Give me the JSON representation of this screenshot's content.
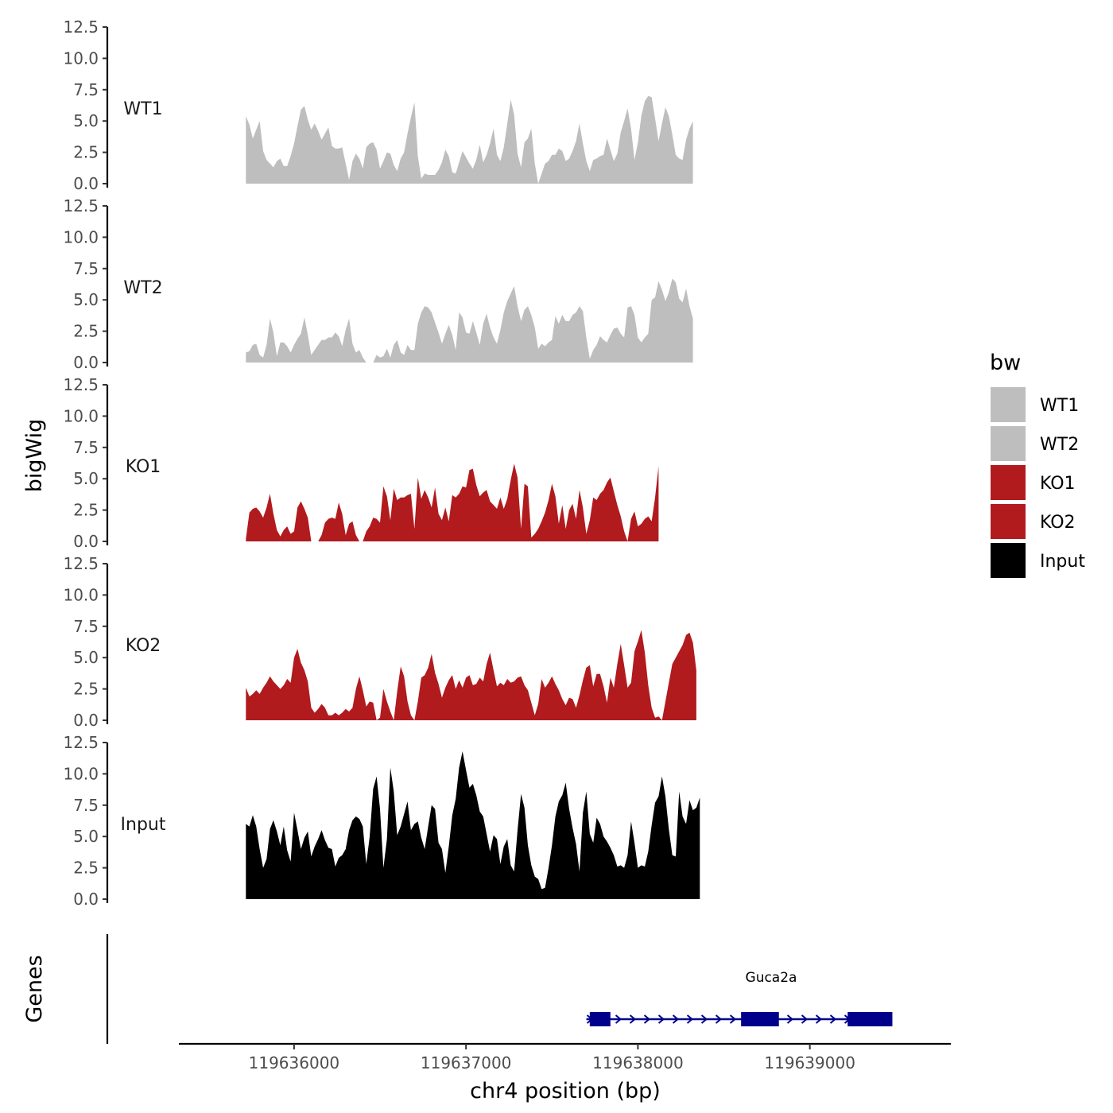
{
  "chart_data": {
    "type": "area",
    "ylabel": "bigWig",
    "xlabel": "chr4 position (bp)",
    "xlim": [
      119635330,
      119639820
    ],
    "x_ticks": [
      {
        "value": 119636000,
        "label": "119636000"
      },
      {
        "value": 119637000,
        "label": "119637000"
      },
      {
        "value": 119638000,
        "label": "119638000"
      },
      {
        "value": 119639000,
        "label": "119639000"
      }
    ],
    "ylim": [
      0,
      12.5
    ],
    "y_ticks": [
      "0.0",
      "2.5",
      "5.0",
      "7.5",
      "10.0",
      "12.5"
    ],
    "y_tick_values": [
      0,
      2.5,
      5,
      7.5,
      10,
      12.5
    ],
    "x_start": 119635720,
    "x_step": 20,
    "series": [
      {
        "name": "WT1",
        "color": "#bebebe",
        "values": [
          5.4,
          4.7,
          3.6,
          4.3,
          5.0,
          2.6,
          1.9,
          1.6,
          1.3,
          1.8,
          2.0,
          1.4,
          1.4,
          2.2,
          3.2,
          4.6,
          5.9,
          6.2,
          5.1,
          4.3,
          4.8,
          4.2,
          3.5,
          4.0,
          4.5,
          3.0,
          2.8,
          2.8,
          2.9,
          1.6,
          0.3,
          1.8,
          2.4,
          2.0,
          1.2,
          2.9,
          3.2,
          3.3,
          2.7,
          1.2,
          1.8,
          2.5,
          2.4,
          1.5,
          1.0,
          2.0,
          2.5,
          4.0,
          5.3,
          6.5,
          2.2,
          0.4,
          0.8,
          0.7,
          0.7,
          0.7,
          1.1,
          1.7,
          2.7,
          2.2,
          0.9,
          0.8,
          1.7,
          2.6,
          2.1,
          1.6,
          1.2,
          1.9,
          3.1,
          1.7,
          2.3,
          3.2,
          4.4,
          2.3,
          1.8,
          2.9,
          4.8,
          6.7,
          5.5,
          2.4,
          1.3,
          3.3,
          3.6,
          4.4,
          1.6,
          0.0,
          0.8,
          1.6,
          1.8,
          2.3,
          2.3,
          2.8,
          2.6,
          1.8,
          2.0,
          2.6,
          3.4,
          4.8,
          3.2,
          1.8,
          1.0,
          1.9,
          2.0,
          2.2,
          2.3,
          3.6,
          2.7,
          1.8,
          2.4,
          4.1,
          5.0,
          6.0,
          4.4,
          1.9,
          3.3,
          5.4,
          6.6,
          7.0,
          6.9,
          5.2,
          3.4,
          4.8,
          6.1,
          5.4,
          3.9,
          2.3,
          2.0,
          1.9,
          3.5,
          4.4,
          5.0
        ]
      },
      {
        "name": "WT2",
        "color": "#bebebe",
        "values": [
          0.8,
          0.9,
          1.4,
          1.5,
          0.6,
          0.4,
          1.4,
          3.5,
          2.4,
          0.5,
          1.6,
          1.6,
          1.3,
          0.8,
          1.4,
          1.9,
          2.3,
          3.6,
          2.2,
          0.6,
          1.0,
          1.4,
          1.8,
          1.8,
          2.0,
          2.0,
          2.4,
          2.1,
          1.3,
          2.6,
          3.5,
          1.5,
          0.8,
          1.0,
          0.4,
          0.0,
          0.0,
          0.0,
          0.6,
          0.4,
          0.5,
          1.1,
          0.4,
          1.4,
          1.8,
          0.8,
          0.6,
          1.4,
          1.0,
          1.0,
          3.1,
          4.0,
          4.5,
          4.4,
          4.0,
          3.2,
          2.4,
          1.5,
          2.3,
          3.0,
          2.2,
          1.0,
          4.0,
          3.6,
          2.4,
          2.3,
          3.3,
          2.4,
          1.4,
          3.1,
          3.9,
          2.8,
          2.0,
          1.5,
          2.6,
          4.0,
          4.9,
          5.5,
          6.1,
          4.5,
          3.3,
          4.2,
          4.5,
          3.8,
          2.8,
          1.1,
          1.5,
          1.3,
          1.6,
          1.8,
          3.7,
          3.1,
          3.8,
          3.3,
          3.3,
          3.8,
          4.0,
          4.5,
          4.1,
          2.0,
          0.3,
          1.0,
          1.4,
          2.1,
          1.8,
          1.6,
          2.2,
          2.7,
          2.8,
          2.3,
          2.0,
          4.4,
          4.5,
          3.8,
          2.0,
          1.6,
          2.0,
          2.3,
          5.0,
          5.2,
          6.5,
          5.8,
          4.9,
          5.6,
          6.7,
          6.4,
          5.1,
          4.8,
          5.9,
          4.5,
          3.5
        ]
      },
      {
        "name": "KO1",
        "color": "#b11b1e",
        "values": [
          0.2,
          2.3,
          2.6,
          2.7,
          2.4,
          1.9,
          2.7,
          3.8,
          2.2,
          0.9,
          0.4,
          0.9,
          1.2,
          0.6,
          0.8,
          2.7,
          3.2,
          2.6,
          1.9,
          0.0,
          0.0,
          0.0,
          0.5,
          1.5,
          1.8,
          1.9,
          1.8,
          3.1,
          2.2,
          0.5,
          1.4,
          1.6,
          0.5,
          0.0,
          0.0,
          0.8,
          1.2,
          1.9,
          1.8,
          1.5,
          4.4,
          3.6,
          1.7,
          4.2,
          3.3,
          3.5,
          3.5,
          3.7,
          3.8,
          1.0,
          5.1,
          3.4,
          4.1,
          3.5,
          2.7,
          4.3,
          2.2,
          1.7,
          2.7,
          1.6,
          3.7,
          3.5,
          3.8,
          4.4,
          4.3,
          5.7,
          5.8,
          4.5,
          3.6,
          3.9,
          4.1,
          3.2,
          2.9,
          2.6,
          3.5,
          2.6,
          3.4,
          4.9,
          6.2,
          5.1,
          1.0,
          4.6,
          4.4,
          0.3,
          0.6,
          1.0,
          1.6,
          2.3,
          3.3,
          4.6,
          3.6,
          1.4,
          2.9,
          1.0,
          2.5,
          3.0,
          1.8,
          4.1,
          2.7,
          0.6,
          1.7,
          3.5,
          3.3,
          3.8,
          4.1,
          4.7,
          5.1,
          4.0,
          2.9,
          2.0,
          0.8,
          0.0,
          1.8,
          2.4,
          1.2,
          1.4,
          1.8,
          2.0,
          1.6,
          3.5,
          6.0
        ]
      },
      {
        "name": "KO2",
        "color": "#b11b1e",
        "values": [
          2.6,
          1.9,
          2.1,
          2.4,
          2.1,
          2.6,
          3.0,
          3.5,
          3.1,
          2.8,
          2.5,
          2.8,
          3.3,
          3.0,
          5.0,
          5.7,
          4.6,
          4.0,
          3.1,
          1.0,
          0.6,
          0.9,
          1.3,
          1.0,
          0.4,
          0.4,
          0.6,
          0.4,
          0.6,
          0.9,
          0.7,
          1.0,
          2.5,
          3.5,
          2.4,
          1.1,
          1.5,
          1.4,
          0.0,
          0.2,
          2.5,
          1.5,
          0.7,
          0.0,
          2.3,
          4.3,
          3.5,
          1.5,
          0.4,
          0.0,
          1.5,
          3.4,
          3.6,
          4.2,
          5.3,
          3.8,
          2.9,
          1.8,
          2.6,
          3.2,
          3.6,
          2.5,
          3.2,
          2.6,
          3.4,
          3.6,
          2.8,
          2.9,
          3.4,
          3.1,
          4.5,
          5.4,
          4.0,
          2.7,
          3.0,
          2.8,
          3.3,
          3.0,
          3.1,
          3.4,
          3.5,
          2.8,
          2.4,
          1.4,
          0.4,
          1.3,
          3.3,
          2.6,
          3.0,
          3.5,
          2.9,
          2.4,
          1.7,
          1.2,
          1.8,
          1.7,
          1.0,
          2.0,
          3.2,
          4.2,
          4.4,
          2.7,
          3.7,
          3.7,
          2.7,
          1.4,
          3.4,
          2.6,
          4.5,
          6.1,
          4.4,
          2.6,
          3.0,
          5.5,
          6.3,
          7.2,
          5.4,
          2.8,
          1.0,
          0.2,
          0.3,
          0.0,
          1.5,
          3.0,
          4.5,
          5.0,
          5.5,
          6.0,
          6.8,
          7.0,
          6.2,
          4.0
        ]
      },
      {
        "name": "Input",
        "color": "#000000",
        "values": [
          6.0,
          5.8,
          6.7,
          5.8,
          4.0,
          2.5,
          3.2,
          5.6,
          6.3,
          5.4,
          4.3,
          5.8,
          3.9,
          3.0,
          6.9,
          5.5,
          4.0,
          4.9,
          5.4,
          3.4,
          4.2,
          4.8,
          5.5,
          4.7,
          4.1,
          4.0,
          2.6,
          3.3,
          3.5,
          4.0,
          5.5,
          6.3,
          6.6,
          6.4,
          5.8,
          2.8,
          5.0,
          8.8,
          9.8,
          7.2,
          2.5,
          4.8,
          10.5,
          8.6,
          5.1,
          5.8,
          6.8,
          7.8,
          5.5,
          6.0,
          6.2,
          4.9,
          4.0,
          5.8,
          7.5,
          7.2,
          4.5,
          4.0,
          2.1,
          4.2,
          6.7,
          8.0,
          10.5,
          11.8,
          10.3,
          8.9,
          9.2,
          8.3,
          7.0,
          6.6,
          5.2,
          3.8,
          5.1,
          4.8,
          2.8,
          4.2,
          4.8,
          2.7,
          2.2,
          5.5,
          8.4,
          7.3,
          4.3,
          2.7,
          1.8,
          1.6,
          0.8,
          0.9,
          2.5,
          4.3,
          6.6,
          7.8,
          8.3,
          9.3,
          7.2,
          5.7,
          4.4,
          2.2,
          6.9,
          8.6,
          5.2,
          4.5,
          6.5,
          6.0,
          5.0,
          4.6,
          4.1,
          3.5,
          2.6,
          2.7,
          2.5,
          3.5,
          6.2,
          4.5,
          2.5,
          2.7,
          2.6,
          3.8,
          5.9,
          7.7,
          8.2,
          9.8,
          8.2,
          5.6,
          3.5,
          3.4,
          8.6,
          6.6,
          6.0,
          7.9,
          7.1,
          7.3,
          8.1
        ]
      }
    ],
    "genes": [
      {
        "name": "Guca2a",
        "start": 119637700,
        "end": 119639480,
        "strand": "+",
        "exons": [
          [
            119637720,
            119637840
          ],
          [
            119638600,
            119638820
          ],
          [
            119639220,
            119639480
          ]
        ],
        "color": "#00008b"
      }
    ],
    "gene_track_label": "Genes",
    "legend": {
      "title": "bw",
      "entries": [
        {
          "label": "WT1",
          "color": "#bebebe"
        },
        {
          "label": "WT2",
          "color": "#bebebe"
        },
        {
          "label": "KO1",
          "color": "#b11b1e"
        },
        {
          "label": "KO2",
          "color": "#b11b1e"
        },
        {
          "label": "Input",
          "color": "#000000"
        }
      ]
    }
  }
}
